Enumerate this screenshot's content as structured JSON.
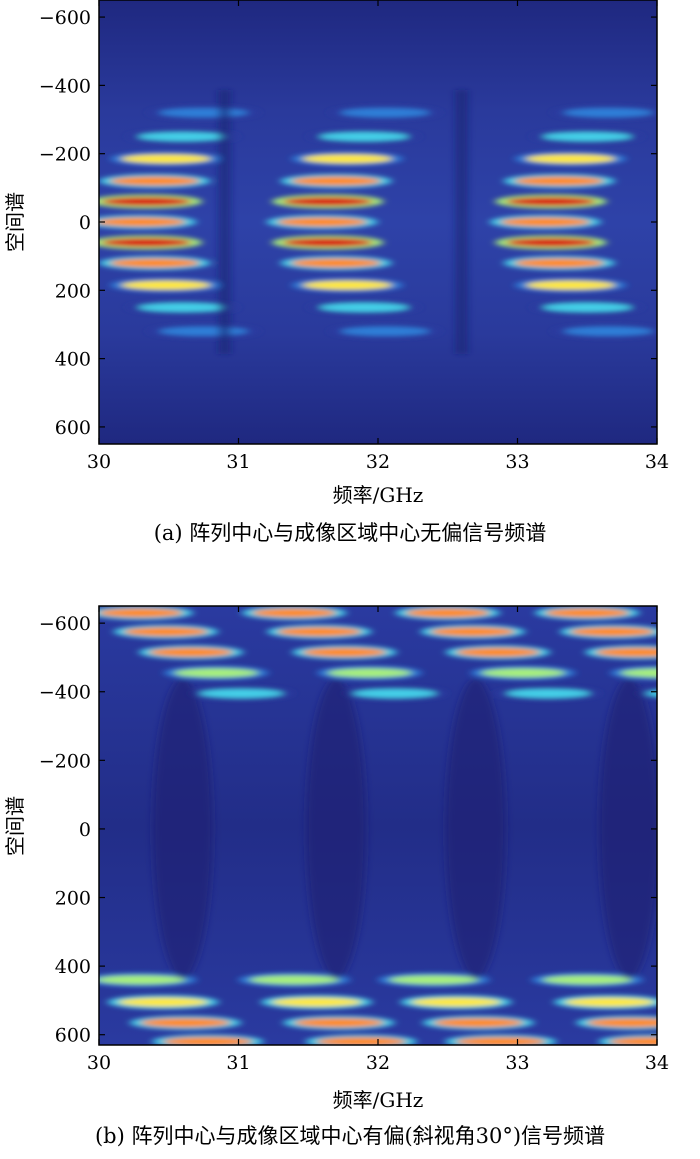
{
  "chart_data": [
    {
      "type": "heatmap",
      "panel": "a",
      "caption": "(a) 阵列中心与成像区域中心无偏信号频谱",
      "xlabel": "频率/GHz",
      "ylabel": "空间谱",
      "xlim": [
        30,
        34
      ],
      "ylim": [
        -650,
        650
      ],
      "y_inverted": true,
      "x_ticks": [
        "30",
        "31",
        "32",
        "33",
        "34"
      ],
      "y_ticks": [
        "−600",
        "−400",
        "−200",
        "0",
        "200",
        "400",
        "600"
      ],
      "y_tick_values": [
        -600,
        -400,
        -200,
        0,
        200,
        400,
        600
      ],
      "x_tick_values": [
        30,
        31,
        32,
        33,
        34
      ],
      "colormap": "jet",
      "pattern": "symmetric",
      "bands_abs_y": [
        0,
        60,
        120,
        185,
        250,
        320
      ],
      "band_peak_freqs_ghz": [
        30.3,
        31.6,
        33.2
      ],
      "grid": false
    },
    {
      "type": "heatmap",
      "panel": "b",
      "caption": "(b) 阵列中心与成像区域中心有偏(斜视角30°)信号频谱",
      "xlabel": "频率/GHz",
      "ylabel": "空间谱",
      "xlim": [
        30,
        34
      ],
      "ylim": [
        -650,
        630
      ],
      "y_inverted": true,
      "x_ticks": [
        "30",
        "31",
        "32",
        "33",
        "34"
      ],
      "y_ticks": [
        "−600",
        "−400",
        "−200",
        "0",
        "200",
        "400",
        "600"
      ],
      "y_tick_values": [
        -600,
        -400,
        -200,
        0,
        200,
        400,
        600
      ],
      "x_tick_values": [
        30,
        31,
        32,
        33,
        34
      ],
      "colormap": "jet",
      "pattern": "shifted to edges",
      "bands_top_y": [
        -630,
        -575,
        -515,
        -455,
        -395
      ],
      "bands_bottom_y": [
        440,
        505,
        565,
        620
      ],
      "grid": false
    }
  ]
}
